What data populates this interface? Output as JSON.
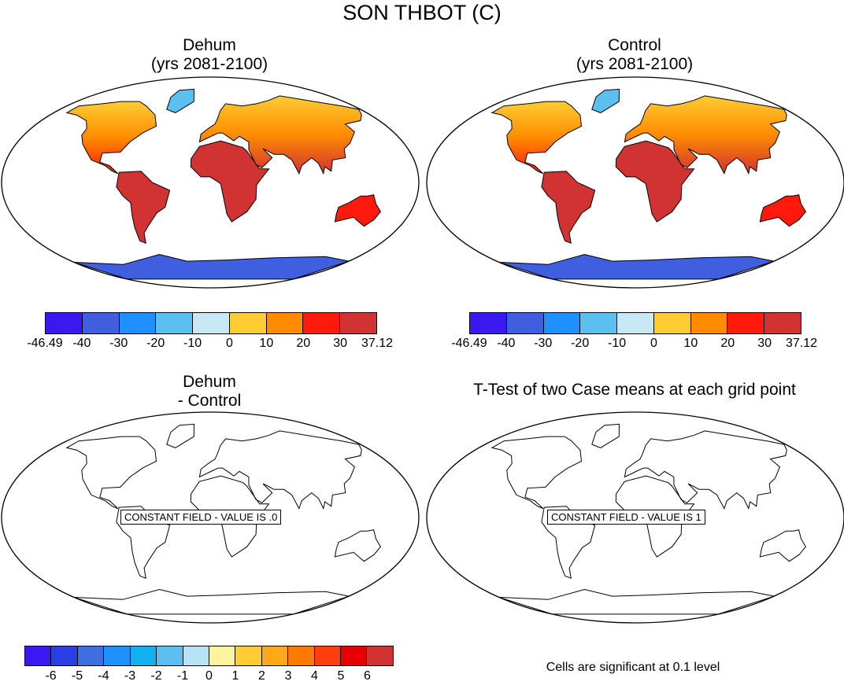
{
  "title": "SON THBOT (C)",
  "panels": [
    {
      "id": "dehum",
      "title_line1": "Dehum",
      "title_line2": "(yrs 2081-2100)"
    },
    {
      "id": "control",
      "title_line1": "Control",
      "title_line2": "(yrs 2081-2100)"
    },
    {
      "id": "diff",
      "title_line1": "Dehum",
      "title_line2": "- Control",
      "constant_label": "CONSTANT FIELD - VALUE IS .0"
    },
    {
      "id": "ttest",
      "title_line1": "T-Test of two Case means at each grid point",
      "constant_label": "CONSTANT FIELD - VALUE IS 1"
    }
  ],
  "colorbar_top": {
    "colors": [
      "#3b18f0",
      "#3f5ee0",
      "#1e90ff",
      "#5bc0f0",
      "#c8e8f5",
      "#ffcc33",
      "#ff8c00",
      "#ff1a0d",
      "#d13232"
    ],
    "labels": [
      "-46.49",
      "-40",
      "-30",
      "-20",
      "-10",
      "0",
      "10",
      "20",
      "30",
      "37.12"
    ]
  },
  "colorbar_bottom": {
    "colors": [
      "#3b18f0",
      "#2a3ee6",
      "#3f6ee0",
      "#1e90ff",
      "#13b0f0",
      "#5bc0f0",
      "#b8e3f5",
      "#fff3a0",
      "#ffcc33",
      "#ffa81a",
      "#ff7a00",
      "#ff3d0d",
      "#e60000",
      "#d13232"
    ],
    "labels": [
      "-6",
      "-5",
      "-4",
      "-3",
      "-2",
      "-1",
      "0",
      "1",
      "2",
      "3",
      "4",
      "5",
      "6"
    ]
  },
  "footnote": "Cells are significant at 0.1 level"
}
